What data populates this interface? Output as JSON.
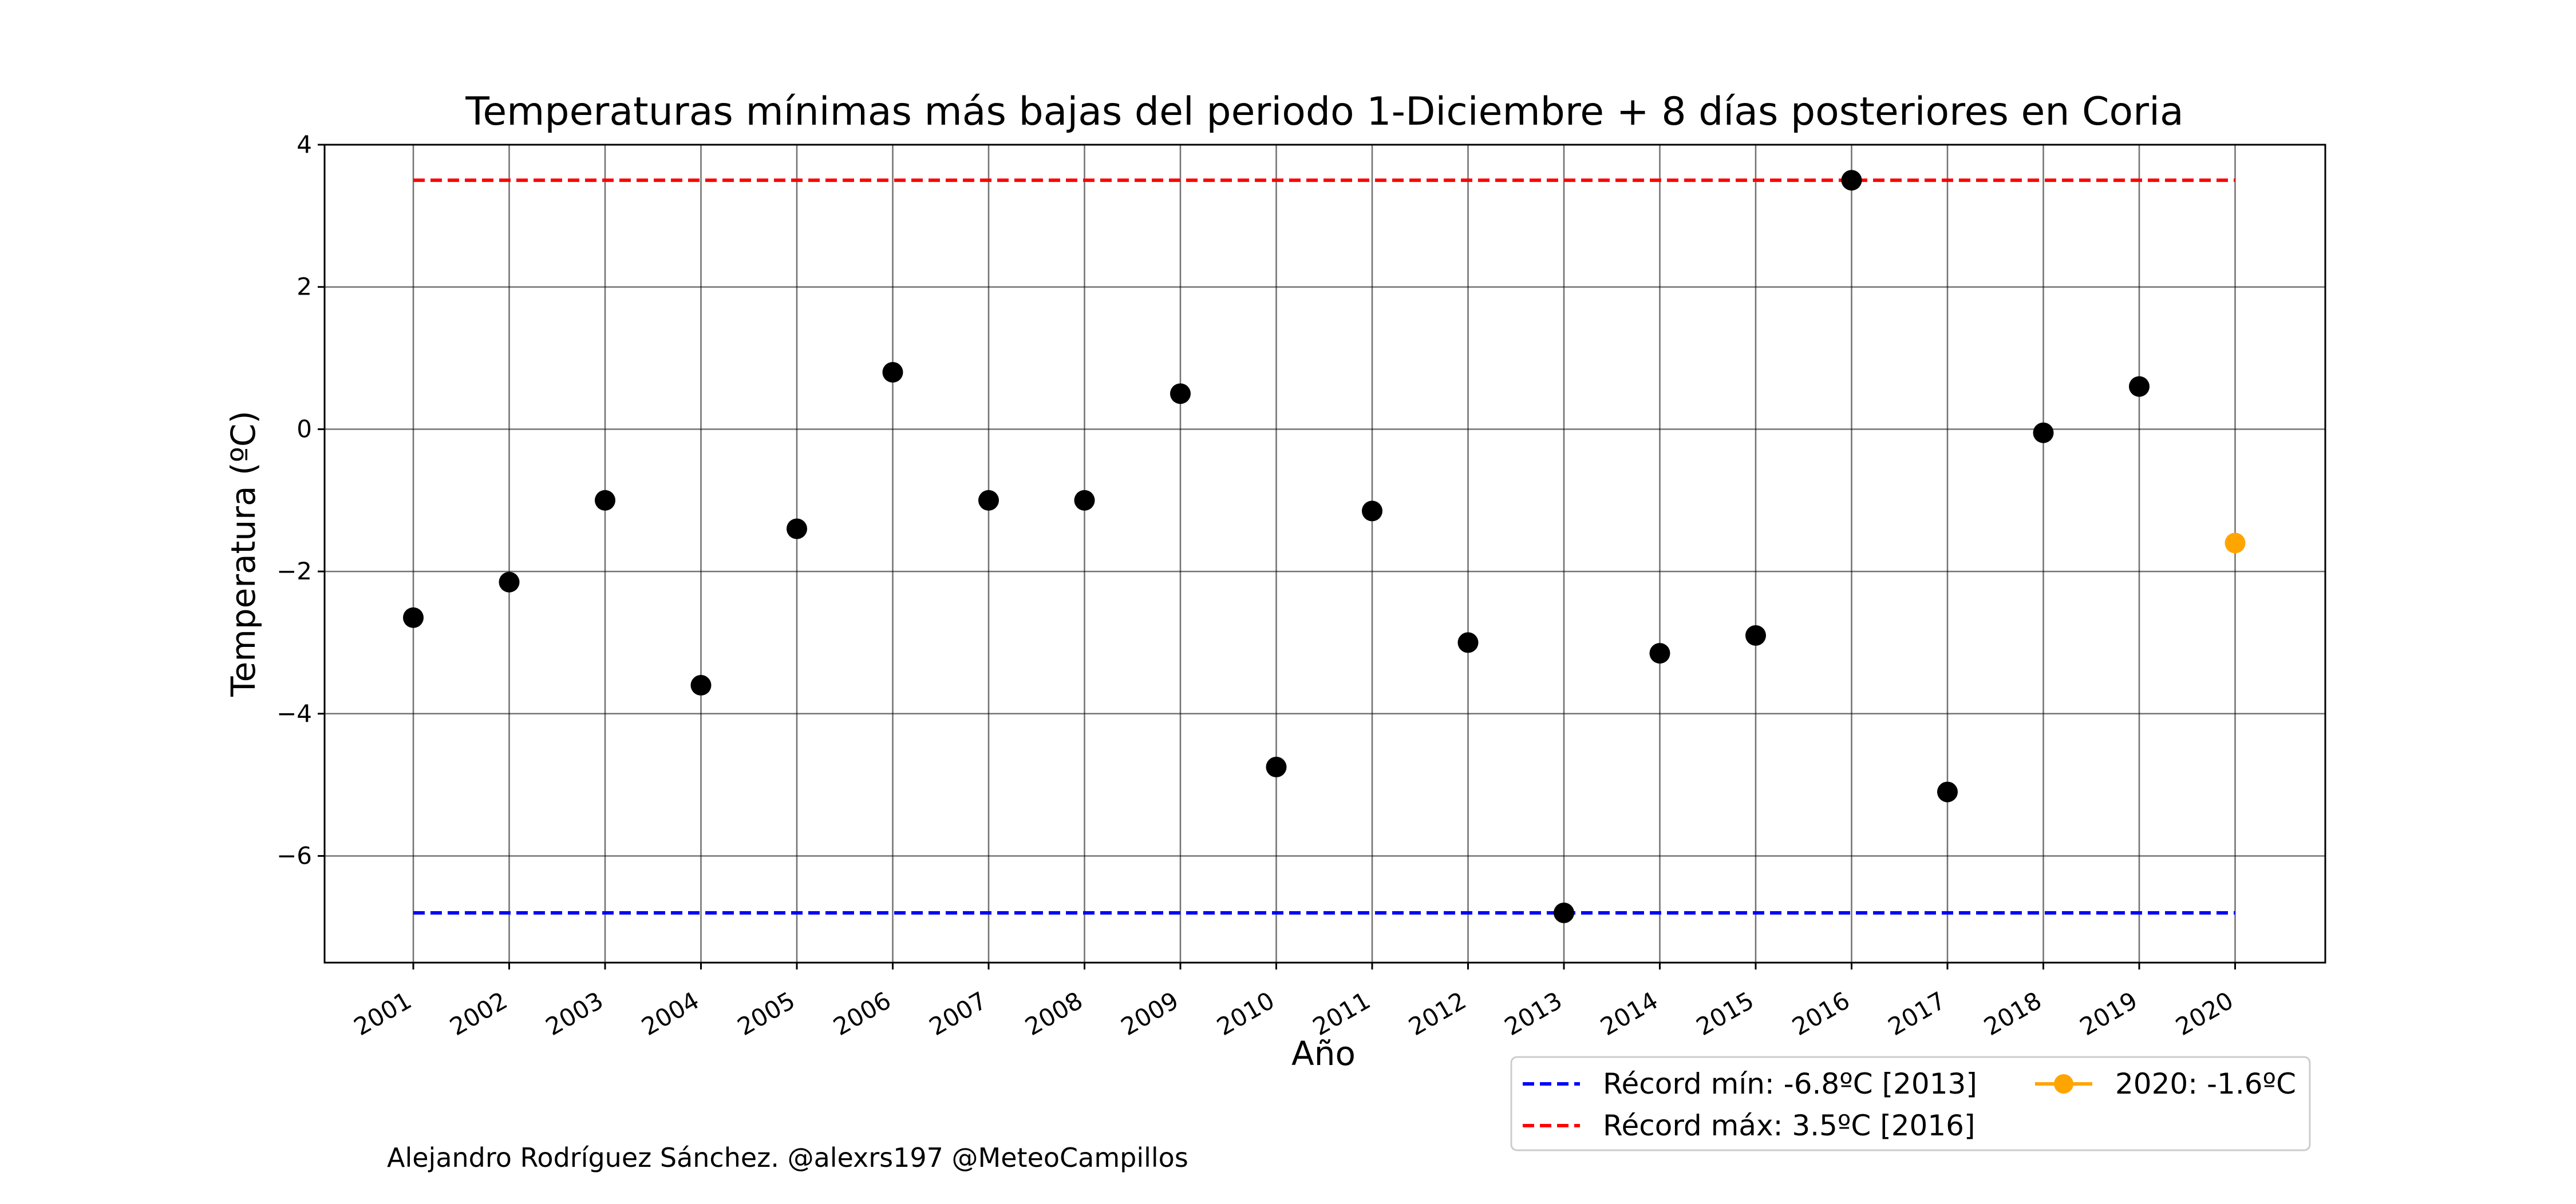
{
  "chart_data": {
    "type": "scatter",
    "title": "Temperaturas mínimas más bajas del periodo 1-Diciembre + 8 días posteriores en Coria",
    "xlabel": "Año",
    "ylabel": "Temperatura (ºC)",
    "x": [
      "2001",
      "2002",
      "2003",
      "2004",
      "2005",
      "2006",
      "2007",
      "2008",
      "2009",
      "2010",
      "2011",
      "2012",
      "2013",
      "2014",
      "2015",
      "2016",
      "2017",
      "2018",
      "2019",
      "2020"
    ],
    "ylim": [
      -7.5,
      4
    ],
    "yticks": [
      4,
      2,
      0,
      -2,
      -4,
      -6
    ],
    "ytick_labels": [
      "4",
      "2",
      "0",
      "−2",
      "−4",
      "−6"
    ],
    "grid": true,
    "series": [
      {
        "values": [
          -2.65,
          -2.15,
          -1.0,
          -3.6,
          -1.4,
          0.8,
          -1.0,
          -1.0,
          0.5,
          -4.75,
          -1.15,
          -3.0,
          -6.8,
          -3.15,
          -2.9,
          3.5,
          -5.1,
          -0.05,
          0.6,
          null
        ],
        "color": "#000000"
      },
      {
        "name": "2020: -1.6ºC",
        "values": [
          null,
          null,
          null,
          null,
          null,
          null,
          null,
          null,
          null,
          null,
          null,
          null,
          null,
          null,
          null,
          null,
          null,
          null,
          null,
          -1.6
        ],
        "color": "#ffa500"
      }
    ],
    "reference_lines": [
      {
        "name": "Récord mín: -6.8ºC [2013]",
        "value": -6.8,
        "color": "#0000ff"
      },
      {
        "name": "Récord máx: 3.5ºC [2016]",
        "value": 3.5,
        "color": "#ff0000"
      }
    ],
    "legend": {
      "placement": "bottom-right",
      "entries": [
        "Récord mín: -6.8ºC [2013]",
        "Récord máx: 3.5ºC [2016]",
        "2020: -1.6ºC"
      ]
    },
    "annotation": "Alejandro Rodríguez Sánchez. @alexrs197 @MeteoCampillos"
  }
}
